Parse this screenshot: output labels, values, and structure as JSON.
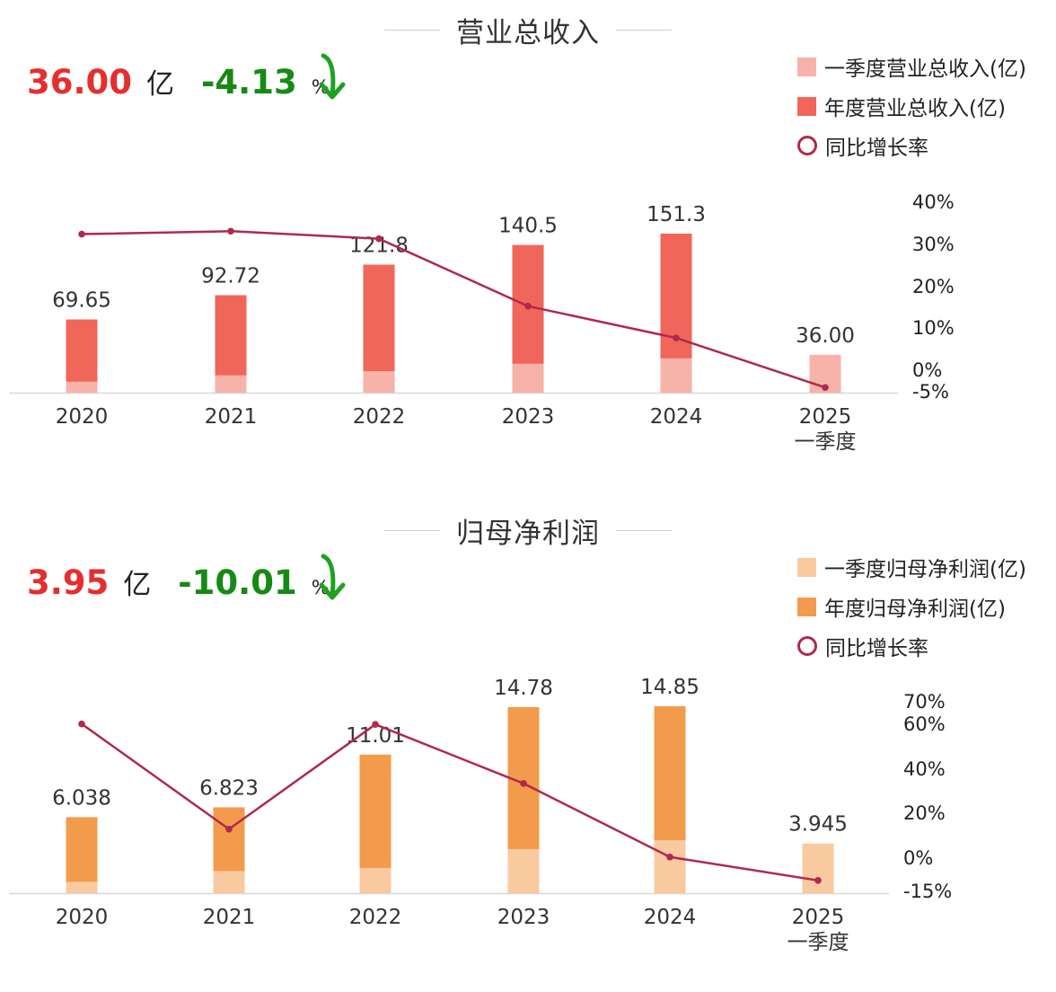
{
  "chart_data": [
    {
      "type": "bar",
      "title": "营业总收入",
      "headline": {
        "value": "36.00",
        "unit": "亿",
        "change": "-4.13",
        "percent_sign": "%"
      },
      "legend": [
        "一季度营业总收入(亿)",
        "年度营业总收入(亿)",
        "同比增长率"
      ],
      "categories": [
        "2020",
        "2021",
        "2022",
        "2023",
        "2024",
        "2025"
      ],
      "category_sublabels": [
        "",
        "",
        "",
        "",
        "",
        "一季度"
      ],
      "series": [
        {
          "name": "一季度营业总收入(亿)",
          "values": [
            10.5,
            16.5,
            20.5,
            27.6,
            32.7,
            36.0
          ]
        },
        {
          "name": "年度营业总收入(亿)",
          "values": [
            69.65,
            92.72,
            121.8,
            140.5,
            151.3,
            null
          ]
        },
        {
          "name": "同比增长率",
          "values": [
            32.5,
            33.2,
            31.4,
            15.3,
            7.7,
            -4.13
          ]
        }
      ],
      "data_labels": [
        "69.65",
        "92.72",
        "121.8",
        "140.5",
        "151.3",
        "36.00"
      ],
      "y2_ticks": [
        "40%",
        "30%",
        "20%",
        "10%",
        "0%",
        "-5%"
      ],
      "colors": {
        "quarter": "#f7b2a9",
        "annual": "#f0665a",
        "line": "#b0294e",
        "headline_value": "#e52e2e",
        "headline_change": "#158a14"
      }
    },
    {
      "type": "bar",
      "title": "归母净利润",
      "headline": {
        "value": "3.95",
        "unit": "亿",
        "change": "-10.01",
        "percent_sign": "%"
      },
      "legend": [
        "一季度归母净利润(亿)",
        "年度归母净利润(亿)",
        "同比增长率"
      ],
      "categories": [
        "2020",
        "2021",
        "2022",
        "2023",
        "2024",
        "2025"
      ],
      "category_sublabels": [
        "",
        "",
        "",
        "",
        "",
        "一季度"
      ],
      "series": [
        {
          "name": "一季度归母净利润(亿)",
          "values": [
            0.9,
            1.75,
            2.0,
            3.5,
            4.2,
            3.945
          ]
        },
        {
          "name": "年度归母净利润(亿)",
          "values": [
            6.038,
            6.823,
            11.01,
            14.78,
            14.85,
            null
          ]
        },
        {
          "name": "同比增长率",
          "values": [
            60.2,
            13.0,
            60.0,
            33.5,
            0.5,
            -10.01
          ]
        }
      ],
      "data_labels": [
        "6.038",
        "6.823",
        "11.01",
        "14.78",
        "14.85",
        "3.945"
      ],
      "y2_ticks": [
        "70%",
        "60%",
        "40%",
        "20%",
        "0%",
        "-15%"
      ],
      "colors": {
        "quarter": "#f9caa0",
        "annual": "#f39b4c",
        "line": "#b0294e",
        "headline_value": "#e52e2e",
        "headline_change": "#158a14"
      }
    }
  ]
}
